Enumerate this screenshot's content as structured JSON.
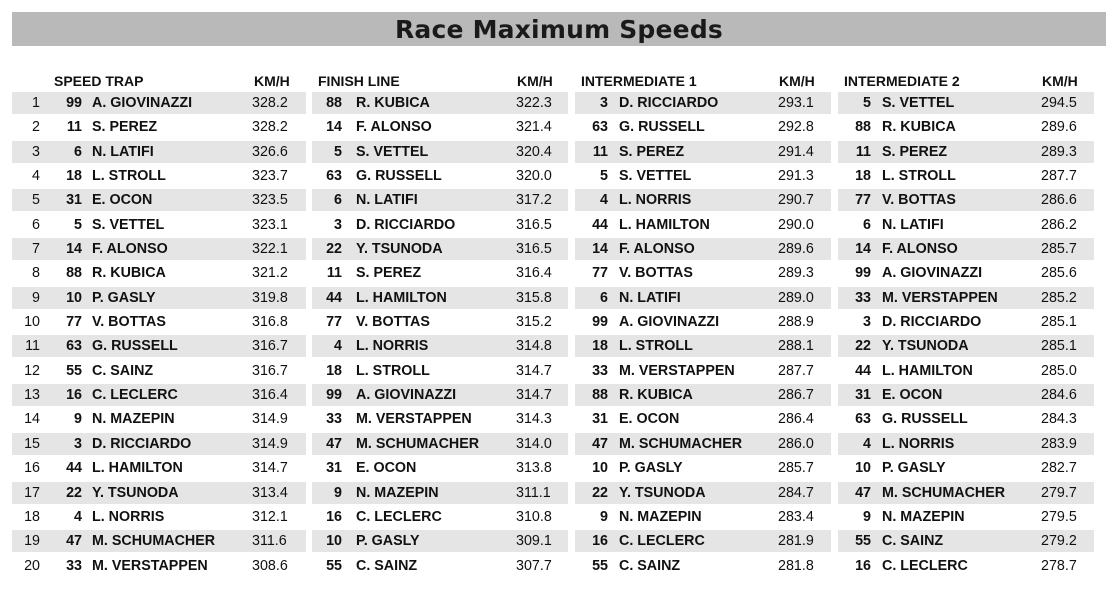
{
  "title": "Race Maximum Speeds",
  "unit_label": "KM/H",
  "tables": [
    {
      "heading": "SPEED TRAP",
      "rows": [
        {
          "rank": "1",
          "num": "99",
          "driver": "A. GIOVINAZZI",
          "speed": "328.2"
        },
        {
          "rank": "2",
          "num": "11",
          "driver": "S. PEREZ",
          "speed": "328.2"
        },
        {
          "rank": "3",
          "num": "6",
          "driver": "N. LATIFI",
          "speed": "326.6"
        },
        {
          "rank": "4",
          "num": "18",
          "driver": "L. STROLL",
          "speed": "323.7"
        },
        {
          "rank": "5",
          "num": "31",
          "driver": "E. OCON",
          "speed": "323.5"
        },
        {
          "rank": "6",
          "num": "5",
          "driver": "S. VETTEL",
          "speed": "323.1"
        },
        {
          "rank": "7",
          "num": "14",
          "driver": "F. ALONSO",
          "speed": "322.1"
        },
        {
          "rank": "8",
          "num": "88",
          "driver": "R. KUBICA",
          "speed": "321.2"
        },
        {
          "rank": "9",
          "num": "10",
          "driver": "P. GASLY",
          "speed": "319.8"
        },
        {
          "rank": "10",
          "num": "77",
          "driver": "V. BOTTAS",
          "speed": "316.8"
        },
        {
          "rank": "11",
          "num": "63",
          "driver": "G. RUSSELL",
          "speed": "316.7"
        },
        {
          "rank": "12",
          "num": "55",
          "driver": "C. SAINZ",
          "speed": "316.7"
        },
        {
          "rank": "13",
          "num": "16",
          "driver": "C. LECLERC",
          "speed": "316.4"
        },
        {
          "rank": "14",
          "num": "9",
          "driver": "N. MAZEPIN",
          "speed": "314.9"
        },
        {
          "rank": "15",
          "num": "3",
          "driver": "D. RICCIARDO",
          "speed": "314.9"
        },
        {
          "rank": "16",
          "num": "44",
          "driver": "L. HAMILTON",
          "speed": "314.7"
        },
        {
          "rank": "17",
          "num": "22",
          "driver": "Y. TSUNODA",
          "speed": "313.4"
        },
        {
          "rank": "18",
          "num": "4",
          "driver": "L. NORRIS",
          "speed": "312.1"
        },
        {
          "rank": "19",
          "num": "47",
          "driver": "M. SCHUMACHER",
          "speed": "311.6"
        },
        {
          "rank": "20",
          "num": "33",
          "driver": "M. VERSTAPPEN",
          "speed": "308.6"
        }
      ]
    },
    {
      "heading": "FINISH LINE",
      "rows": [
        {
          "num": "88",
          "driver": "R. KUBICA",
          "speed": "322.3"
        },
        {
          "num": "14",
          "driver": "F. ALONSO",
          "speed": "321.4"
        },
        {
          "num": "5",
          "driver": "S. VETTEL",
          "speed": "320.4"
        },
        {
          "num": "63",
          "driver": "G. RUSSELL",
          "speed": "320.0"
        },
        {
          "num": "6",
          "driver": "N. LATIFI",
          "speed": "317.2"
        },
        {
          "num": "3",
          "driver": "D. RICCIARDO",
          "speed": "316.5"
        },
        {
          "num": "22",
          "driver": "Y. TSUNODA",
          "speed": "316.5"
        },
        {
          "num": "11",
          "driver": "S. PEREZ",
          "speed": "316.4"
        },
        {
          "num": "44",
          "driver": "L. HAMILTON",
          "speed": "315.8"
        },
        {
          "num": "77",
          "driver": "V. BOTTAS",
          "speed": "315.2"
        },
        {
          "num": "4",
          "driver": "L. NORRIS",
          "speed": "314.8"
        },
        {
          "num": "18",
          "driver": "L. STROLL",
          "speed": "314.7"
        },
        {
          "num": "99",
          "driver": "A. GIOVINAZZI",
          "speed": "314.7"
        },
        {
          "num": "33",
          "driver": "M. VERSTAPPEN",
          "speed": "314.3"
        },
        {
          "num": "47",
          "driver": "M. SCHUMACHER",
          "speed": "314.0"
        },
        {
          "num": "31",
          "driver": "E. OCON",
          "speed": "313.8"
        },
        {
          "num": "9",
          "driver": "N. MAZEPIN",
          "speed": "311.1"
        },
        {
          "num": "16",
          "driver": "C. LECLERC",
          "speed": "310.8"
        },
        {
          "num": "10",
          "driver": "P. GASLY",
          "speed": "309.1"
        },
        {
          "num": "55",
          "driver": "C. SAINZ",
          "speed": "307.7"
        }
      ]
    },
    {
      "heading": "INTERMEDIATE 1",
      "rows": [
        {
          "num": "3",
          "driver": "D. RICCIARDO",
          "speed": "293.1"
        },
        {
          "num": "63",
          "driver": "G. RUSSELL",
          "speed": "292.8"
        },
        {
          "num": "11",
          "driver": "S. PEREZ",
          "speed": "291.4"
        },
        {
          "num": "5",
          "driver": "S. VETTEL",
          "speed": "291.3"
        },
        {
          "num": "4",
          "driver": "L. NORRIS",
          "speed": "290.7"
        },
        {
          "num": "44",
          "driver": "L. HAMILTON",
          "speed": "290.0"
        },
        {
          "num": "14",
          "driver": "F. ALONSO",
          "speed": "289.6"
        },
        {
          "num": "77",
          "driver": "V. BOTTAS",
          "speed": "289.3"
        },
        {
          "num": "6",
          "driver": "N. LATIFI",
          "speed": "289.0"
        },
        {
          "num": "99",
          "driver": "A. GIOVINAZZI",
          "speed": "288.9"
        },
        {
          "num": "18",
          "driver": "L. STROLL",
          "speed": "288.1"
        },
        {
          "num": "33",
          "driver": "M. VERSTAPPEN",
          "speed": "287.7"
        },
        {
          "num": "88",
          "driver": "R. KUBICA",
          "speed": "286.7"
        },
        {
          "num": "31",
          "driver": "E. OCON",
          "speed": "286.4"
        },
        {
          "num": "47",
          "driver": "M. SCHUMACHER",
          "speed": "286.0"
        },
        {
          "num": "10",
          "driver": "P. GASLY",
          "speed": "285.7"
        },
        {
          "num": "22",
          "driver": "Y. TSUNODA",
          "speed": "284.7"
        },
        {
          "num": "9",
          "driver": "N. MAZEPIN",
          "speed": "283.4"
        },
        {
          "num": "16",
          "driver": "C. LECLERC",
          "speed": "281.9"
        },
        {
          "num": "55",
          "driver": "C. SAINZ",
          "speed": "281.8"
        }
      ]
    },
    {
      "heading": "INTERMEDIATE 2",
      "rows": [
        {
          "num": "5",
          "driver": "S. VETTEL",
          "speed": "294.5"
        },
        {
          "num": "88",
          "driver": "R. KUBICA",
          "speed": "289.6"
        },
        {
          "num": "11",
          "driver": "S. PEREZ",
          "speed": "289.3"
        },
        {
          "num": "18",
          "driver": "L. STROLL",
          "speed": "287.7"
        },
        {
          "num": "77",
          "driver": "V. BOTTAS",
          "speed": "286.6"
        },
        {
          "num": "6",
          "driver": "N. LATIFI",
          "speed": "286.2"
        },
        {
          "num": "14",
          "driver": "F. ALONSO",
          "speed": "285.7"
        },
        {
          "num": "99",
          "driver": "A. GIOVINAZZI",
          "speed": "285.6"
        },
        {
          "num": "33",
          "driver": "M. VERSTAPPEN",
          "speed": "285.2"
        },
        {
          "num": "3",
          "driver": "D. RICCIARDO",
          "speed": "285.1"
        },
        {
          "num": "22",
          "driver": "Y. TSUNODA",
          "speed": "285.1"
        },
        {
          "num": "44",
          "driver": "L. HAMILTON",
          "speed": "285.0"
        },
        {
          "num": "31",
          "driver": "E. OCON",
          "speed": "284.6"
        },
        {
          "num": "63",
          "driver": "G. RUSSELL",
          "speed": "284.3"
        },
        {
          "num": "4",
          "driver": "L. NORRIS",
          "speed": "283.9"
        },
        {
          "num": "10",
          "driver": "P. GASLY",
          "speed": "282.7"
        },
        {
          "num": "47",
          "driver": "M. SCHUMACHER",
          "speed": "279.7"
        },
        {
          "num": "9",
          "driver": "N. MAZEPIN",
          "speed": "279.5"
        },
        {
          "num": "55",
          "driver": "C. SAINZ",
          "speed": "279.2"
        },
        {
          "num": "16",
          "driver": "C. LECLERC",
          "speed": "278.7"
        }
      ]
    }
  ]
}
